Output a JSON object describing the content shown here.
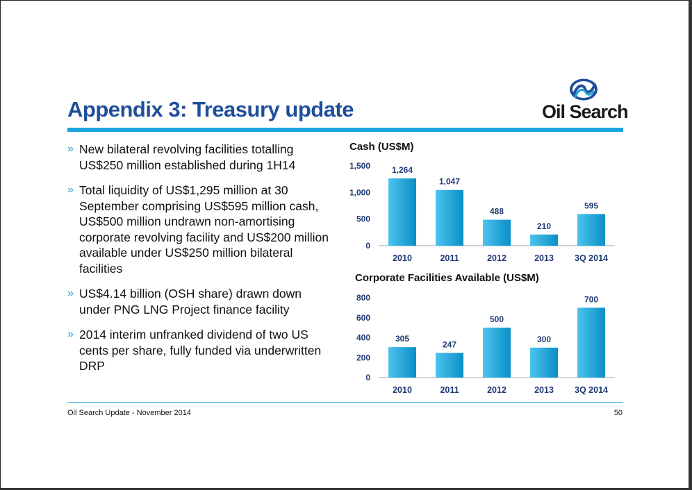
{
  "slide": {
    "title": "Appendix 3: Treasury update",
    "logo_text": "Oil Search",
    "bullet_marker": "»",
    "bullets": [
      "New bilateral revolving facilities totalling US$250 million established during 1H14",
      "Total liquidity of US$1,295 million at 30 September comprising US$595 million cash, US$500 million undrawn non-amortising corporate revolving facility and US$200 million available under US$250 million bilateral facilities",
      "US$4.14 billion (OSH share) drawn down under PNG LNG Project finance facility",
      "2014 interim unfranked dividend of two US cents per share, fully funded via underwritten DRP"
    ],
    "footer": "Oil Search Update - November 2014",
    "page_number": "50"
  },
  "colors": {
    "title": "#1f4e9a",
    "accent": "#1aa3dd",
    "bar_light": "#4cc3ee",
    "bar_dark": "#0a8fc6",
    "axis_text": "#1f3b73"
  },
  "chart_data": [
    {
      "type": "bar",
      "title": "Cash (US$M)",
      "categories": [
        "2010",
        "2011",
        "2012",
        "2013",
        "3Q 2014"
      ],
      "values": [
        1264,
        1047,
        488,
        210,
        595
      ],
      "value_labels": [
        "1,264",
        "1,047",
        "488",
        "210",
        "595"
      ],
      "ylim": [
        0,
        1500
      ],
      "yticks": [
        0,
        500,
        1000,
        1500
      ],
      "ytick_labels": [
        "0",
        "500",
        "1,000",
        "1,500"
      ],
      "grid": false
    },
    {
      "type": "bar",
      "title": "Corporate Facilities Available (US$M)",
      "categories": [
        "2010",
        "2011",
        "2012",
        "2013",
        "3Q 2014"
      ],
      "values": [
        305,
        247,
        500,
        300,
        700
      ],
      "value_labels": [
        "305",
        "247",
        "500",
        "300",
        "700"
      ],
      "ylim": [
        0,
        800
      ],
      "yticks": [
        0,
        200,
        400,
        600,
        800
      ],
      "ytick_labels": [
        "0",
        "200",
        "400",
        "600",
        "800"
      ],
      "grid": false
    }
  ]
}
